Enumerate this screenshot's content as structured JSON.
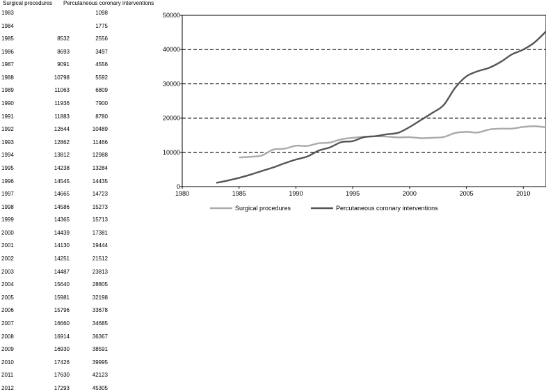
{
  "table": {
    "headers": [
      "Surgical procedures",
      "Percutaneous coronary interventions"
    ],
    "rows": [
      [
        "1983",
        "",
        "1098"
      ],
      [
        "1984",
        "",
        "1775"
      ],
      [
        "1985",
        "8532",
        "2556"
      ],
      [
        "1986",
        "8693",
        "3497"
      ],
      [
        "1987",
        "9091",
        "4556"
      ],
      [
        "1988",
        "10798",
        "5592"
      ],
      [
        "1989",
        "11063",
        "6809"
      ],
      [
        "1990",
        "11936",
        "7900"
      ],
      [
        "1991",
        "11883",
        "8780"
      ],
      [
        "1992",
        "12644",
        "10489"
      ],
      [
        "1993",
        "12862",
        "11466"
      ],
      [
        "1994",
        "13812",
        "12988"
      ],
      [
        "1995",
        "14238",
        "13284"
      ],
      [
        "1996",
        "14545",
        "14435"
      ],
      [
        "1997",
        "14665",
        "14723"
      ],
      [
        "1998",
        "14586",
        "15273"
      ],
      [
        "1999",
        "14365",
        "15713"
      ],
      [
        "2000",
        "14439",
        "17381"
      ],
      [
        "2001",
        "14130",
        "19444"
      ],
      [
        "2002",
        "14251",
        "21512"
      ],
      [
        "2003",
        "14487",
        "23813"
      ],
      [
        "2004",
        "15640",
        "28805"
      ],
      [
        "2005",
        "15981",
        "32198"
      ],
      [
        "2006",
        "15796",
        "33678"
      ],
      [
        "2007",
        "16660",
        "34685"
      ],
      [
        "2008",
        "16914",
        "36367"
      ],
      [
        "2009",
        "16930",
        "38591"
      ],
      [
        "2010",
        "17426",
        "39995"
      ],
      [
        "2011",
        "17630",
        "42123"
      ],
      [
        "2012",
        "17293",
        "45305"
      ]
    ]
  },
  "chart_data": {
    "type": "line",
    "title": "",
    "xlabel": "",
    "ylabel": "",
    "xlim": [
      1980,
      2012
    ],
    "ylim": [
      0,
      50000
    ],
    "xticks": [
      1980,
      1985,
      1990,
      1995,
      2000,
      2005,
      2010
    ],
    "yticks": [
      0,
      10000,
      20000,
      30000,
      40000,
      50000
    ],
    "grid": "dashed horizontal at 10000, 20000, 30000, 40000",
    "legend": "bottom",
    "series": [
      {
        "name": "Surgical procedures",
        "color": "#aaaaaa",
        "x": [
          1985,
          1986,
          1987,
          1988,
          1989,
          1990,
          1991,
          1992,
          1993,
          1994,
          1995,
          1996,
          1997,
          1998,
          1999,
          2000,
          2001,
          2002,
          2003,
          2004,
          2005,
          2006,
          2007,
          2008,
          2009,
          2010,
          2011,
          2012
        ],
        "values": [
          8532,
          8693,
          9091,
          10798,
          11063,
          11936,
          11883,
          12644,
          12862,
          13812,
          14238,
          14545,
          14665,
          14586,
          14365,
          14439,
          14130,
          14251,
          14487,
          15640,
          15981,
          15796,
          16660,
          16914,
          16930,
          17426,
          17630,
          17293
        ]
      },
      {
        "name": "Percutaneous coronary interventions",
        "color": "#555555",
        "x": [
          1983,
          1984,
          1985,
          1986,
          1987,
          1988,
          1989,
          1990,
          1991,
          1992,
          1993,
          1994,
          1995,
          1996,
          1997,
          1998,
          1999,
          2000,
          2001,
          2002,
          2003,
          2004,
          2005,
          2006,
          2007,
          2008,
          2009,
          2010,
          2011,
          2012
        ],
        "values": [
          1098,
          1775,
          2556,
          3497,
          4556,
          5592,
          6809,
          7900,
          8780,
          10489,
          11466,
          12988,
          13284,
          14435,
          14723,
          15273,
          15713,
          17381,
          19444,
          21512,
          23813,
          28805,
          32198,
          33678,
          34685,
          36367,
          38591,
          39995,
          42123,
          45305
        ]
      }
    ]
  }
}
